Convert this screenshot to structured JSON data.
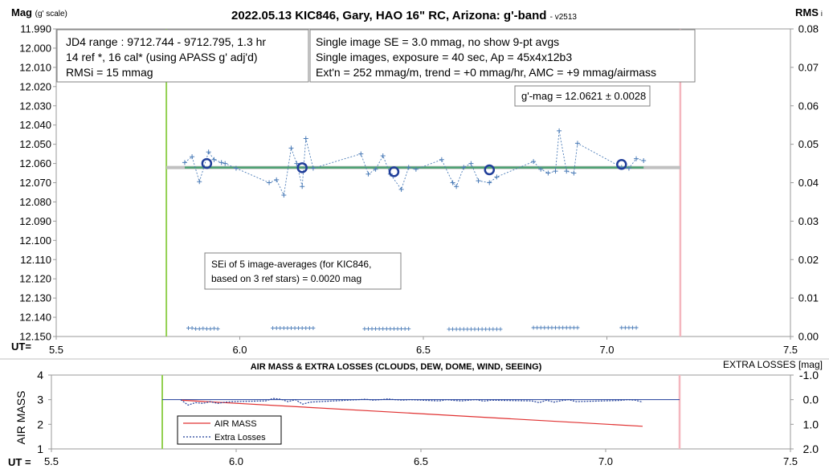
{
  "chart_data": [
    {
      "type": "scatter",
      "title": "2022.05.13 KIC846, Gary, HAO 16\" RC, Arizona: g'-band",
      "title_version": "- v2513",
      "ylabel_main": "Mag",
      "ylabel_sub": "(g' scale)",
      "y2label_main": "RMS",
      "y2label_sub": "i",
      "xlabel": "UT=",
      "xlim": [
        5.5,
        7.5
      ],
      "ylim": [
        12.15,
        11.99
      ],
      "y2lim": [
        0.0,
        0.08
      ],
      "x_ticks": [
        "5.5",
        "6.0",
        "6.5",
        "7.0",
        "7.5"
      ],
      "y_ticks": [
        "11.990",
        "12.000",
        "12.010",
        "12.020",
        "12.030",
        "12.040",
        "12.050",
        "12.060",
        "12.070",
        "12.080",
        "12.090",
        "12.100",
        "12.110",
        "12.120",
        "12.130",
        "12.140",
        "12.150"
      ],
      "y2_ticks": [
        "0.08",
        "0.07",
        "0.06",
        "0.05",
        "0.04",
        "0.03",
        "0.02",
        "0.01",
        "0.00"
      ],
      "grid": false,
      "colors": {
        "single": "#4a7bb7",
        "avg": "#1f3d99",
        "fit": "#4aa070",
        "gray_line": "#c0c0c0",
        "start_line": "#92d050",
        "end_line": "#f4b6be",
        "rms": "#4a7bb7"
      },
      "start_ut": 5.8,
      "end_ut": 7.2,
      "fit_line": {
        "x": [
          5.85,
          7.1
        ],
        "y": [
          12.0621,
          12.0621
        ]
      },
      "gray_line": {
        "x": [
          5.8,
          7.2
        ],
        "y": [
          12.0621,
          12.0621
        ]
      },
      "single_images": {
        "x": [
          5.85,
          5.87,
          5.89,
          5.915,
          5.93,
          5.95,
          5.96,
          5.99,
          6.08,
          6.1,
          6.12,
          6.14,
          6.155,
          6.17,
          6.18,
          6.2,
          6.33,
          6.35,
          6.37,
          6.39,
          6.41,
          6.44,
          6.46,
          6.48,
          6.55,
          6.58,
          6.59,
          6.61,
          6.63,
          6.65,
          6.68,
          6.7,
          6.8,
          6.82,
          6.84,
          6.86,
          6.87,
          6.89,
          6.91,
          6.92,
          7.04,
          7.06,
          7.08,
          7.1
        ],
        "y": [
          12.0595,
          12.0565,
          12.0695,
          12.054,
          12.058,
          12.0595,
          12.06,
          12.0625,
          12.07,
          12.0685,
          12.0765,
          12.052,
          12.06,
          12.072,
          12.047,
          12.0625,
          12.055,
          12.0655,
          12.063,
          12.056,
          12.0655,
          12.0735,
          12.062,
          12.063,
          12.058,
          12.07,
          12.072,
          12.062,
          12.06,
          12.069,
          12.07,
          12.067,
          12.059,
          12.063,
          12.065,
          12.064,
          12.043,
          12.064,
          12.065,
          12.0495,
          12.062,
          12.0625,
          12.0575,
          12.0585
        ]
      },
      "averages": {
        "x": [
          5.91,
          6.17,
          6.42,
          6.68,
          7.04
        ],
        "y": [
          12.06,
          12.0622,
          12.0643,
          12.0633,
          12.0605
        ]
      },
      "rms_points": {
        "x": [
          5.86,
          5.87,
          5.88,
          5.89,
          5.9,
          5.91,
          5.92,
          5.93,
          5.94,
          6.09,
          6.1,
          6.11,
          6.12,
          6.13,
          6.14,
          6.15,
          6.16,
          6.17,
          6.18,
          6.19,
          6.2,
          6.34,
          6.35,
          6.36,
          6.37,
          6.38,
          6.39,
          6.4,
          6.41,
          6.42,
          6.43,
          6.44,
          6.45,
          6.46,
          6.57,
          6.58,
          6.59,
          6.6,
          6.61,
          6.62,
          6.63,
          6.64,
          6.65,
          6.66,
          6.67,
          6.68,
          6.69,
          6.7,
          6.71,
          6.8,
          6.81,
          6.82,
          6.83,
          6.84,
          6.85,
          6.86,
          6.87,
          6.88,
          6.89,
          6.9,
          6.91,
          6.92,
          7.04,
          7.05,
          7.06,
          7.07,
          7.08
        ],
        "y": [
          0.0022,
          0.0022,
          0.002,
          0.002,
          0.0021,
          0.002,
          0.002,
          0.0021,
          0.002,
          0.0022,
          0.0022,
          0.0022,
          0.0022,
          0.0022,
          0.0022,
          0.0022,
          0.0022,
          0.0022,
          0.0022,
          0.0022,
          0.0022,
          0.002,
          0.002,
          0.002,
          0.002,
          0.002,
          0.002,
          0.002,
          0.002,
          0.002,
          0.002,
          0.002,
          0.002,
          0.002,
          0.0019,
          0.0019,
          0.0019,
          0.0019,
          0.0019,
          0.0019,
          0.0019,
          0.0019,
          0.0019,
          0.0019,
          0.0019,
          0.0019,
          0.0019,
          0.0019,
          0.0019,
          0.0023,
          0.0023,
          0.0023,
          0.0023,
          0.0023,
          0.0023,
          0.0023,
          0.0023,
          0.0023,
          0.0023,
          0.0023,
          0.0023,
          0.0023,
          0.0023,
          0.0023,
          0.0023,
          0.0023,
          0.0023
        ]
      },
      "annotations": {
        "box1": [
          "JD4 range : 9712.744 - 9712.795,  1.3  hr",
          "14 ref *, 16 cal* (using APASS g' adj'd)",
          "RMSi = 15 mmag"
        ],
        "box2": [
          "Single image SE = 3.0 mmag, no show  9-pt avgs",
          "Single images, exposure = 40 sec, Ap = 45x4x12b3",
          "Ext'n = 252 mmag/m, trend = +0 mmag/hr, AMC = +9 mmag/airmass"
        ],
        "box3": [
          "g'-mag = 12.0621 ± 0.0028"
        ],
        "box4": [
          "SEi of 5 image-averages (for KIC846,",
          "based on 3 ref stars) = 0.0020 mag"
        ]
      }
    },
    {
      "type": "line",
      "title": "AIR MASS & EXTRA LOSSES (CLOUDS, DEW, DOME, WIND, SEEING)",
      "ylabel": "AIR MASS",
      "y2label": "EXTRA LOSSES [mag]",
      "xlabel": "UT =",
      "xlim": [
        5.5,
        7.5
      ],
      "ylim": [
        1,
        4
      ],
      "y2lim": [
        2.0,
        -1.0
      ],
      "x_ticks": [
        "5.5",
        "6.0",
        "6.5",
        "7.0",
        "7.5"
      ],
      "y_ticks": [
        "4",
        "3",
        "2",
        "1"
      ],
      "y2_ticks": [
        "-1.0",
        "0.0",
        "1.0",
        "2.0"
      ],
      "legend_position": "bottom-left",
      "start_ut": 5.8,
      "end_ut": 7.2,
      "series": [
        {
          "name": "AIR MASS",
          "color": "#e03030",
          "x": [
            5.85,
            7.1
          ],
          "y": [
            2.98,
            1.92
          ]
        },
        {
          "name": "Extra Losses",
          "color": "#1f3d99",
          "x": [
            5.85,
            5.87,
            5.89,
            5.91,
            5.93,
            5.95,
            5.97,
            5.99,
            6.08,
            6.1,
            6.12,
            6.14,
            6.16,
            6.18,
            6.2,
            6.33,
            6.35,
            6.37,
            6.39,
            6.41,
            6.43,
            6.45,
            6.47,
            6.55,
            6.57,
            6.59,
            6.61,
            6.63,
            6.65,
            6.67,
            6.69,
            6.8,
            6.82,
            6.84,
            6.86,
            6.88,
            6.9,
            6.92,
            7.04,
            7.06,
            7.08,
            7.1
          ],
          "y": [
            0.0,
            0.22,
            0.12,
            0.15,
            0.08,
            0.15,
            0.1,
            0.08,
            0.05,
            -0.05,
            -0.02,
            0.08,
            0.0,
            0.18,
            0.1,
            0.0,
            -0.02,
            0.02,
            0.0,
            -0.03,
            0.0,
            0.02,
            0.0,
            0.05,
            0.0,
            0.03,
            0.05,
            0.02,
            0.0,
            0.06,
            0.02,
            0.05,
            0.12,
            0.02,
            0.1,
            0.04,
            0.0,
            0.08,
            0.03,
            0.0,
            0.02,
            0.1
          ]
        },
        {
          "name": "",
          "color": "#1f3d99",
          "x": [
            5.8,
            7.2
          ],
          "y": [
            0.0,
            0.0
          ]
        }
      ]
    }
  ]
}
